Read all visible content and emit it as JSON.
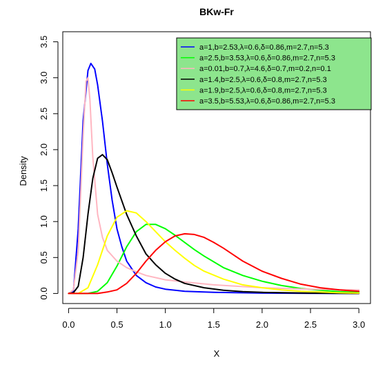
{
  "chart_data": {
    "type": "line",
    "title": "BKw-Fr",
    "xlabel": "X",
    "ylabel": "Density",
    "xlim": [
      -0.06,
      3.12
    ],
    "ylim": [
      -0.14,
      3.64
    ],
    "x_ticks": [
      0.0,
      0.5,
      1.0,
      1.5,
      2.0,
      2.5,
      3.0
    ],
    "x_tick_labels": [
      "0.0",
      "0.5",
      "1.0",
      "1.5",
      "2.0",
      "2.5",
      "3.0"
    ],
    "y_ticks": [
      0.0,
      0.5,
      1.0,
      1.5,
      2.0,
      2.5,
      3.0,
      3.5
    ],
    "y_tick_labels": [
      "0.0",
      "0.5",
      "1.0",
      "1.5",
      "2.0",
      "2.5",
      "3.0",
      "3.5"
    ],
    "grid": false,
    "legend_position": "top-right",
    "legend_background": "#8de58d",
    "series": [
      {
        "name": "a=1,b=2.53,λ=0.6,δ=0.86,m=2.7,n=5.3",
        "color": "#0000ff",
        "x": [
          0.0,
          0.05,
          0.1,
          0.15,
          0.2,
          0.23,
          0.27,
          0.3,
          0.35,
          0.4,
          0.45,
          0.5,
          0.55,
          0.6,
          0.7,
          0.8,
          0.9,
          1.0,
          1.2,
          1.5,
          2.0,
          2.5,
          3.0
        ],
        "y": [
          0.0,
          0.02,
          0.9,
          2.4,
          3.1,
          3.2,
          3.12,
          2.9,
          2.4,
          1.8,
          1.3,
          0.9,
          0.65,
          0.45,
          0.25,
          0.15,
          0.09,
          0.06,
          0.03,
          0.015,
          0.005,
          0.002,
          0.0
        ]
      },
      {
        "name": "a=2.5,b=3.53,λ=0.6,δ=0.86,m=2.7,n=5.3",
        "color": "#00ff00",
        "x": [
          0.0,
          0.2,
          0.3,
          0.4,
          0.5,
          0.6,
          0.7,
          0.8,
          0.9,
          1.0,
          1.1,
          1.2,
          1.3,
          1.4,
          1.5,
          1.6,
          1.8,
          2.0,
          2.2,
          2.4,
          2.6,
          2.8,
          3.0
        ],
        "y": [
          0.0,
          0.0,
          0.03,
          0.15,
          0.38,
          0.65,
          0.86,
          0.96,
          0.96,
          0.9,
          0.81,
          0.71,
          0.61,
          0.52,
          0.44,
          0.36,
          0.25,
          0.17,
          0.11,
          0.07,
          0.045,
          0.025,
          0.015
        ]
      },
      {
        "name": "a=0.01,b=0.7,λ=4.6,δ=0.7,m=0.2,n=0.1",
        "color": "#ffb6c1",
        "x": [
          0.0,
          0.05,
          0.1,
          0.15,
          0.18,
          0.2,
          0.22,
          0.25,
          0.3,
          0.35,
          0.4,
          0.5,
          0.6,
          0.7,
          0.8,
          1.0,
          1.2,
          1.5,
          2.0,
          2.5,
          3.0
        ],
        "y": [
          0.0,
          0.05,
          0.6,
          2.2,
          2.95,
          3.0,
          2.7,
          1.9,
          1.1,
          0.78,
          0.6,
          0.45,
          0.36,
          0.3,
          0.25,
          0.19,
          0.16,
          0.12,
          0.08,
          0.06,
          0.05
        ]
      },
      {
        "name": "a=1.4,b=2.5,λ=0.6,δ=0.8,m=2.7,n=5.3",
        "color": "#000000",
        "x": [
          0.0,
          0.05,
          0.1,
          0.15,
          0.2,
          0.25,
          0.3,
          0.35,
          0.4,
          0.45,
          0.5,
          0.6,
          0.7,
          0.8,
          0.9,
          1.0,
          1.1,
          1.2,
          1.4,
          1.6,
          1.8,
          2.0,
          2.5,
          3.0
        ],
        "y": [
          0.0,
          0.01,
          0.1,
          0.5,
          1.1,
          1.6,
          1.88,
          1.93,
          1.86,
          1.68,
          1.48,
          1.1,
          0.8,
          0.55,
          0.4,
          0.28,
          0.2,
          0.14,
          0.08,
          0.045,
          0.025,
          0.015,
          0.005,
          0.0
        ]
      },
      {
        "name": "a=1.9,b=2.5,λ=0.6,δ=0.8,m=2.7,n=5.3",
        "color": "#ffff00",
        "x": [
          0.0,
          0.1,
          0.2,
          0.3,
          0.4,
          0.5,
          0.6,
          0.7,
          0.8,
          0.9,
          1.0,
          1.1,
          1.2,
          1.3,
          1.4,
          1.6,
          1.8,
          2.0,
          2.2,
          2.4,
          2.6,
          2.8,
          3.0
        ],
        "y": [
          0.0,
          0.0,
          0.08,
          0.4,
          0.8,
          1.06,
          1.15,
          1.12,
          1.0,
          0.86,
          0.72,
          0.6,
          0.49,
          0.39,
          0.31,
          0.2,
          0.12,
          0.08,
          0.05,
          0.03,
          0.02,
          0.01,
          0.005
        ]
      },
      {
        "name": "a=3.5,b=5.53,λ=0.6,δ=0.86,m=2.7,n=5.3",
        "color": "#ff0000",
        "x": [
          0.0,
          0.3,
          0.4,
          0.5,
          0.6,
          0.7,
          0.8,
          0.9,
          1.0,
          1.1,
          1.2,
          1.3,
          1.4,
          1.5,
          1.6,
          1.7,
          1.8,
          2.0,
          2.2,
          2.4,
          2.6,
          2.8,
          3.0
        ],
        "y": [
          0.0,
          0.0,
          0.02,
          0.05,
          0.14,
          0.28,
          0.45,
          0.6,
          0.72,
          0.8,
          0.83,
          0.82,
          0.78,
          0.71,
          0.63,
          0.54,
          0.45,
          0.31,
          0.21,
          0.13,
          0.08,
          0.05,
          0.03
        ]
      }
    ]
  }
}
